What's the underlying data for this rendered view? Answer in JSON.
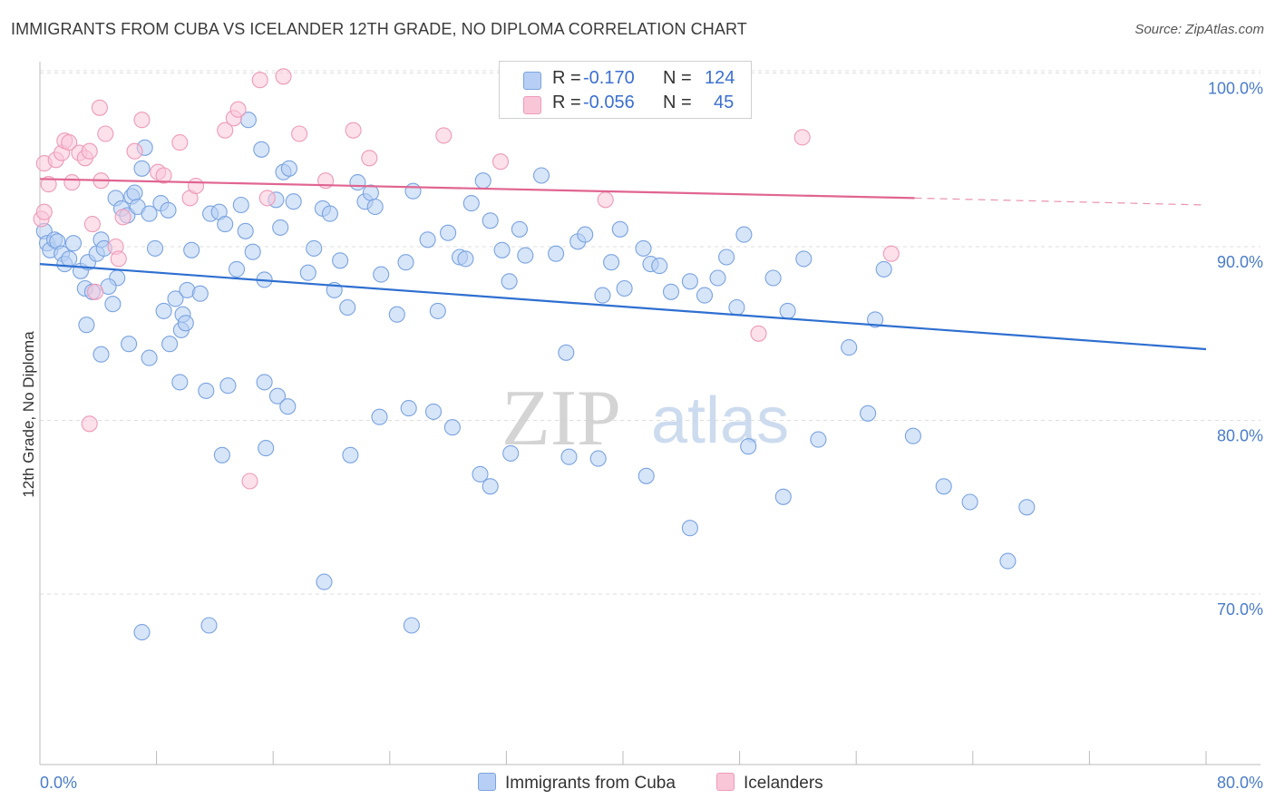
{
  "header": {
    "title": "IMMIGRANTS FROM CUBA VS ICELANDER 12TH GRADE, NO DIPLOMA CORRELATION CHART",
    "source": "Source: ZipAtlas.com"
  },
  "watermark": {
    "zip": "ZIP",
    "atlas": "atlas"
  },
  "legend": {
    "rows": [
      {
        "r_label": "R =",
        "r_value": "-0.170",
        "n_label": "N =",
        "n_value": "124",
        "color": "#9ec0ef"
      },
      {
        "r_label": "R =",
        "r_value": "-0.056",
        "n_label": "N =",
        "n_value": "45",
        "color": "#f4aac4"
      }
    ]
  },
  "bottom_legend": {
    "items": [
      "Immigrants from Cuba",
      "Icelanders"
    ]
  },
  "chart_data": {
    "type": "scatter",
    "title": "IMMIGRANTS FROM CUBA VS ICELANDER 12TH GRADE, NO DIPLOMA CORRELATION CHART",
    "xlabel": "",
    "ylabel": "12th Grade, No Diploma",
    "xlim": [
      0,
      80
    ],
    "ylim": [
      60.5,
      101.5
    ],
    "x_tick_labels": [
      "0.0%",
      "80.0%"
    ],
    "y_ticks": [
      70,
      80,
      90,
      100
    ],
    "y_tick_labels": [
      "70.0%",
      "80.0%",
      "90.0%",
      "100.0%"
    ],
    "grid": true,
    "legend_position": "top-center",
    "colors": {
      "cuba_fill": "#b7cff4",
      "cuba_stroke": "#7aa3e0",
      "cuba_line": "#2e6fd0",
      "ice_fill": "#f9c6d8",
      "ice_stroke": "#ee9ab8",
      "ice_line": "#e06590"
    },
    "series": [
      {
        "name": "Immigrants from Cuba",
        "r": -0.17,
        "n": 124,
        "trend": {
          "x": [
            0,
            80
          ],
          "y": [
            89.0,
            84.1
          ]
        },
        "points": [
          [
            0.3,
            90.9
          ],
          [
            0.5,
            90.2
          ],
          [
            0.7,
            89.8
          ],
          [
            1.0,
            90.4
          ],
          [
            1.2,
            90.3
          ],
          [
            1.5,
            89.6
          ],
          [
            1.7,
            89.0
          ],
          [
            2.0,
            89.3
          ],
          [
            2.3,
            90.2
          ],
          [
            2.8,
            88.6
          ],
          [
            3.1,
            87.6
          ],
          [
            3.3,
            89.1
          ],
          [
            3.6,
            87.4
          ],
          [
            3.9,
            89.6
          ],
          [
            4.2,
            90.4
          ],
          [
            4.4,
            89.9
          ],
          [
            5.3,
            88.2
          ],
          [
            5.0,
            86.7
          ],
          [
            4.7,
            87.7
          ],
          [
            3.2,
            85.5
          ],
          [
            5.2,
            92.8
          ],
          [
            5.6,
            92.2
          ],
          [
            6.0,
            91.8
          ],
          [
            6.3,
            92.9
          ],
          [
            6.5,
            93.1
          ],
          [
            6.7,
            92.3
          ],
          [
            7.0,
            94.5
          ],
          [
            7.2,
            95.7
          ],
          [
            8.3,
            92.5
          ],
          [
            8.8,
            92.1
          ],
          [
            7.9,
            89.9
          ],
          [
            7.5,
            91.9
          ],
          [
            8.5,
            86.3
          ],
          [
            8.9,
            84.4
          ],
          [
            9.7,
            85.2
          ],
          [
            9.3,
            87.0
          ],
          [
            9.8,
            86.1
          ],
          [
            10.1,
            87.5
          ],
          [
            10.4,
            89.8
          ],
          [
            11.0,
            87.3
          ],
          [
            11.7,
            91.9
          ],
          [
            12.3,
            92.0
          ],
          [
            12.7,
            91.3
          ],
          [
            13.5,
            88.7
          ],
          [
            13.8,
            92.4
          ],
          [
            14.1,
            90.9
          ],
          [
            14.6,
            89.7
          ],
          [
            15.4,
            88.1
          ],
          [
            15.2,
            95.6
          ],
          [
            14.3,
            97.3
          ],
          [
            16.2,
            92.7
          ],
          [
            16.5,
            91.1
          ],
          [
            16.7,
            94.3
          ],
          [
            17.1,
            94.5
          ],
          [
            17.4,
            92.6
          ],
          [
            18.4,
            88.5
          ],
          [
            18.8,
            89.9
          ],
          [
            19.4,
            92.2
          ],
          [
            19.9,
            91.9
          ],
          [
            20.2,
            87.5
          ],
          [
            20.6,
            89.2
          ],
          [
            21.1,
            86.5
          ],
          [
            21.8,
            93.7
          ],
          [
            22.3,
            92.6
          ],
          [
            22.7,
            93.1
          ],
          [
            23.0,
            92.3
          ],
          [
            23.4,
            88.4
          ],
          [
            24.5,
            86.1
          ],
          [
            25.1,
            89.1
          ],
          [
            25.6,
            93.2
          ],
          [
            26.6,
            90.4
          ],
          [
            27.3,
            86.3
          ],
          [
            28.0,
            90.8
          ],
          [
            28.8,
            89.4
          ],
          [
            29.2,
            89.3
          ],
          [
            29.6,
            92.5
          ],
          [
            30.4,
            93.8
          ],
          [
            30.9,
            91.5
          ],
          [
            31.7,
            89.8
          ],
          [
            32.2,
            88.0
          ],
          [
            32.9,
            91.0
          ],
          [
            33.3,
            89.5
          ],
          [
            34.4,
            94.1
          ],
          [
            35.4,
            89.6
          ],
          [
            36.1,
            83.9
          ],
          [
            36.9,
            90.3
          ],
          [
            37.4,
            90.7
          ],
          [
            38.6,
            87.2
          ],
          [
            39.2,
            89.1
          ],
          [
            39.8,
            91.0
          ],
          [
            40.1,
            87.6
          ],
          [
            41.4,
            89.9
          ],
          [
            41.9,
            89.0
          ],
          [
            42.5,
            88.9
          ],
          [
            43.3,
            87.4
          ],
          [
            44.6,
            88.0
          ],
          [
            45.6,
            87.2
          ],
          [
            46.5,
            88.2
          ],
          [
            47.1,
            89.4
          ],
          [
            47.8,
            86.5
          ],
          [
            48.3,
            90.7
          ],
          [
            50.3,
            88.2
          ],
          [
            51.3,
            86.3
          ],
          [
            52.4,
            89.3
          ],
          [
            55.5,
            84.2
          ],
          [
            57.3,
            85.8
          ],
          [
            57.9,
            88.7
          ],
          [
            12.5,
            78.0
          ],
          [
            10.0,
            85.6
          ],
          [
            6.1,
            84.4
          ],
          [
            4.2,
            83.8
          ],
          [
            7.5,
            83.6
          ],
          [
            9.6,
            82.2
          ],
          [
            11.4,
            81.7
          ],
          [
            12.9,
            82.0
          ],
          [
            15.4,
            82.2
          ],
          [
            16.3,
            81.4
          ],
          [
            17.0,
            80.8
          ],
          [
            15.5,
            78.4
          ],
          [
            21.3,
            78.0
          ],
          [
            23.3,
            80.2
          ],
          [
            25.3,
            80.7
          ],
          [
            27.0,
            80.5
          ],
          [
            28.3,
            79.6
          ],
          [
            30.2,
            76.9
          ],
          [
            30.9,
            76.2
          ],
          [
            32.3,
            78.1
          ],
          [
            36.3,
            77.9
          ],
          [
            38.3,
            77.8
          ],
          [
            41.6,
            76.8
          ],
          [
            44.6,
            73.8
          ],
          [
            48.6,
            78.5
          ],
          [
            51.0,
            75.6
          ],
          [
            53.4,
            78.9
          ],
          [
            56.8,
            80.4
          ],
          [
            59.9,
            79.1
          ],
          [
            62.0,
            76.2
          ],
          [
            63.8,
            75.3
          ],
          [
            66.4,
            71.9
          ],
          [
            67.7,
            75.0
          ],
          [
            7.0,
            67.8
          ],
          [
            11.6,
            68.2
          ],
          [
            19.5,
            70.7
          ],
          [
            25.5,
            68.2
          ]
        ]
      },
      {
        "name": "Icelanders",
        "r": -0.056,
        "n": 45,
        "trend": {
          "x": [
            0,
            60
          ],
          "y": [
            93.9,
            92.8
          ]
        },
        "trend_dashed": {
          "x": [
            60,
            80
          ],
          "y": [
            92.8,
            92.4
          ]
        },
        "points": [
          [
            0.1,
            91.6
          ],
          [
            0.3,
            94.8
          ],
          [
            0.6,
            93.6
          ],
          [
            1.1,
            95.0
          ],
          [
            1.5,
            95.4
          ],
          [
            1.7,
            96.1
          ],
          [
            2.0,
            96.0
          ],
          [
            2.2,
            93.7
          ],
          [
            2.7,
            95.4
          ],
          [
            3.1,
            95.1
          ],
          [
            3.4,
            95.5
          ],
          [
            3.6,
            91.3
          ],
          [
            3.8,
            87.4
          ],
          [
            4.1,
            98.0
          ],
          [
            4.2,
            93.8
          ],
          [
            4.5,
            96.5
          ],
          [
            5.2,
            90.0
          ],
          [
            5.4,
            89.3
          ],
          [
            5.7,
            91.7
          ],
          [
            6.5,
            95.5
          ],
          [
            7.0,
            97.3
          ],
          [
            8.1,
            94.3
          ],
          [
            8.5,
            94.1
          ],
          [
            9.6,
            96.0
          ],
          [
            10.3,
            92.8
          ],
          [
            10.7,
            93.5
          ],
          [
            12.7,
            96.7
          ],
          [
            13.3,
            97.4
          ],
          [
            13.6,
            97.9
          ],
          [
            14.4,
            76.5
          ],
          [
            15.1,
            99.6
          ],
          [
            15.6,
            92.8
          ],
          [
            16.7,
            99.8
          ],
          [
            17.8,
            96.5
          ],
          [
            19.6,
            93.8
          ],
          [
            21.5,
            96.7
          ],
          [
            22.6,
            95.1
          ],
          [
            27.7,
            96.4
          ],
          [
            31.6,
            94.9
          ],
          [
            38.8,
            92.7
          ],
          [
            49.3,
            85.0
          ],
          [
            52.3,
            96.3
          ],
          [
            58.4,
            89.6
          ],
          [
            3.4,
            79.8
          ],
          [
            0.3,
            92.0
          ]
        ]
      }
    ]
  }
}
